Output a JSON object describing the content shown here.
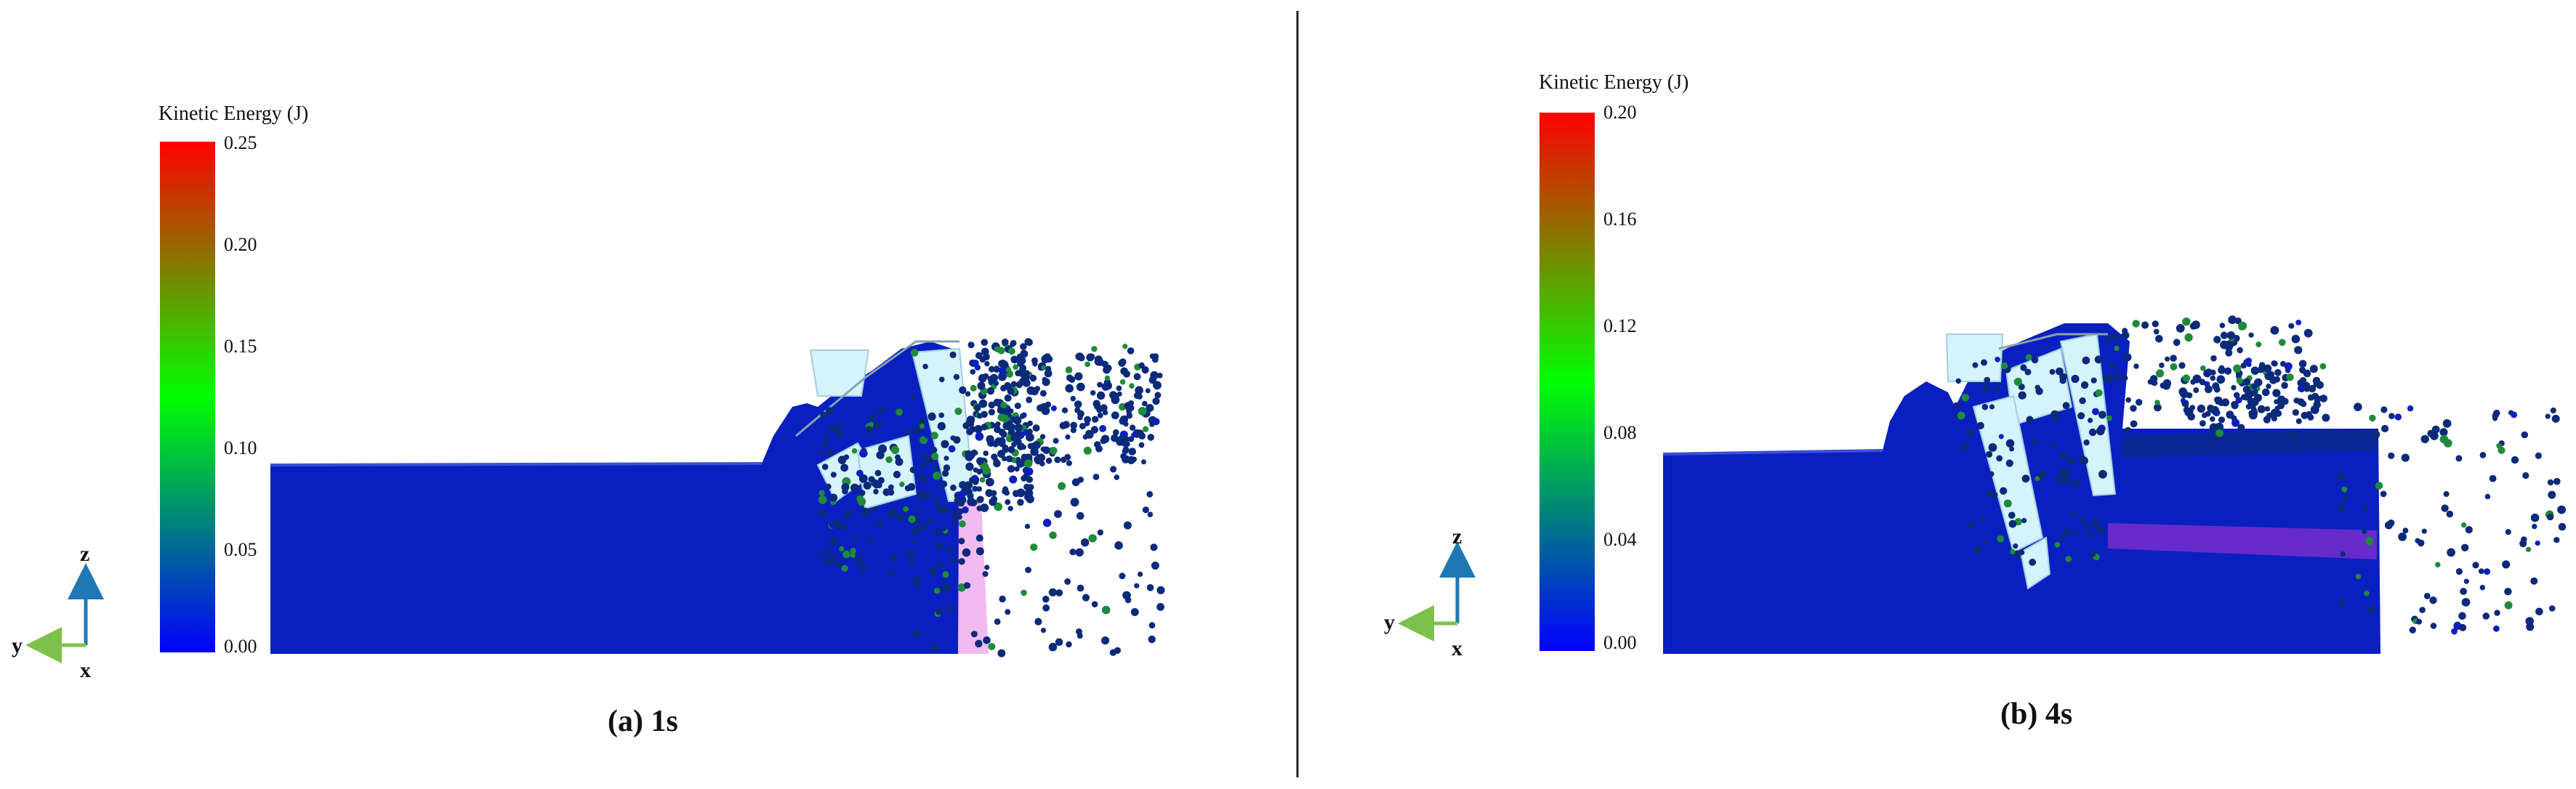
{
  "panels": [
    {
      "id": "a",
      "caption": "(a) 1s",
      "colorbar_title": "Kinetic Energy (J)",
      "colorbar_ticks": [
        "0.25",
        "0.20",
        "0.15",
        "0.10",
        "0.05",
        "0.00"
      ],
      "axes": {
        "z": "z",
        "y": "y",
        "x": "x"
      }
    },
    {
      "id": "b",
      "caption": "(b) 4s",
      "colorbar_title": "Kinetic Energy (J)",
      "colorbar_ticks": [
        "0.20",
        "0.16",
        "0.12",
        "0.08",
        "0.04",
        "0.00"
      ],
      "axes": {
        "z": "z",
        "y": "y",
        "x": "x"
      }
    }
  ],
  "colors": {
    "particle_blue": "#0a1fbf",
    "particle_dark": "#0b2a7a",
    "particle_green": "#1f8a3a",
    "particle_magenta": "#d63ad6",
    "structure": "#d6f2fa",
    "axis_blue": "#1f78b4",
    "axis_green": "#7cc24a"
  }
}
